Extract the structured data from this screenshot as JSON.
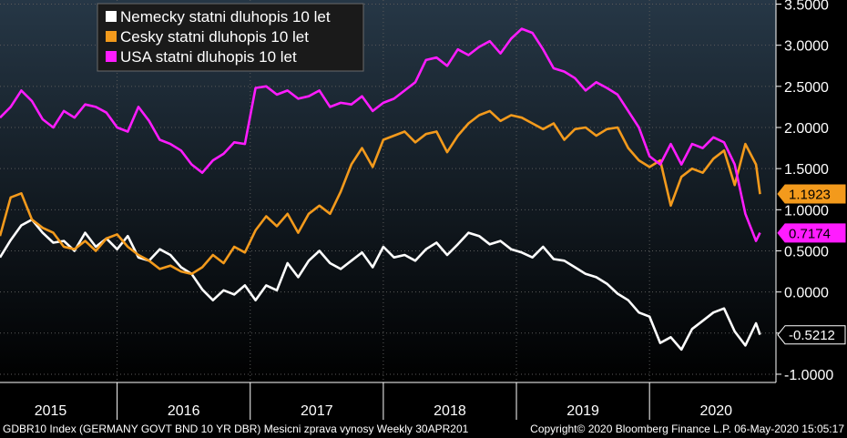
{
  "chart_data": {
    "type": "line",
    "y_ticks": [
      "3.5000",
      "3.0000",
      "2.5000",
      "2.0000",
      "1.5000",
      "1.0000",
      "0.5000",
      "0.0000",
      "-0.5000",
      "-1.0000"
    ],
    "y_tick_values": [
      3.5,
      3.0,
      2.5,
      2.0,
      1.5,
      1.0,
      0.5,
      0.0,
      -0.5,
      -1.0
    ],
    "ylim": [
      -1.1,
      3.55
    ],
    "x_range": [
      2014.62,
      2020.45
    ],
    "year_labels": [
      {
        "label": "2015",
        "value": 2015.0
      },
      {
        "label": "2016",
        "value": 2016.0
      },
      {
        "label": "2017",
        "value": 2017.0
      },
      {
        "label": "2018",
        "value": 2018.0
      },
      {
        "label": "2019",
        "value": 2019.0
      },
      {
        "label": "2020",
        "value": 2020.0
      }
    ],
    "year_boundaries": [
      2015.5,
      2016.5,
      2017.5,
      2018.5,
      2019.5
    ],
    "grid": true,
    "legend_position": "top-left",
    "series": [
      {
        "name": "Nemecky statni dluhopis 10 let",
        "color": "#ffffff",
        "last_value": "-0.5212",
        "x": [
          2014.62,
          2014.7,
          2014.78,
          2014.86,
          2014.94,
          2015.02,
          2015.1,
          2015.18,
          2015.26,
          2015.34,
          2015.42,
          2015.5,
          2015.58,
          2015.66,
          2015.74,
          2015.82,
          2015.9,
          2015.98,
          2016.06,
          2016.14,
          2016.22,
          2016.3,
          2016.38,
          2016.46,
          2016.54,
          2016.62,
          2016.7,
          2016.78,
          2016.86,
          2016.94,
          2017.02,
          2017.1,
          2017.18,
          2017.26,
          2017.34,
          2017.42,
          2017.5,
          2017.58,
          2017.66,
          2017.74,
          2017.82,
          2017.9,
          2017.98,
          2018.06,
          2018.14,
          2018.22,
          2018.3,
          2018.38,
          2018.46,
          2018.54,
          2018.62,
          2018.7,
          2018.78,
          2018.86,
          2018.94,
          2019.02,
          2019.1,
          2019.18,
          2019.26,
          2019.34,
          2019.42,
          2019.5,
          2019.58,
          2019.66,
          2019.74,
          2019.82,
          2019.9,
          2019.98,
          2020.06,
          2020.14,
          2020.22,
          2020.3,
          2020.33
        ],
        "y": [
          0.42,
          0.63,
          0.81,
          0.88,
          0.72,
          0.6,
          0.62,
          0.5,
          0.72,
          0.55,
          0.65,
          0.52,
          0.68,
          0.42,
          0.38,
          0.52,
          0.45,
          0.3,
          0.22,
          0.03,
          -0.1,
          0.02,
          -0.03,
          0.08,
          -0.1,
          0.08,
          0.02,
          0.35,
          0.18,
          0.38,
          0.5,
          0.35,
          0.28,
          0.38,
          0.48,
          0.3,
          0.55,
          0.42,
          0.45,
          0.38,
          0.52,
          0.6,
          0.45,
          0.58,
          0.72,
          0.68,
          0.58,
          0.62,
          0.52,
          0.48,
          0.42,
          0.55,
          0.4,
          0.38,
          0.3,
          0.22,
          0.18,
          0.1,
          -0.02,
          -0.1,
          -0.25,
          -0.3,
          -0.62,
          -0.55,
          -0.7,
          -0.45,
          -0.35,
          -0.25,
          -0.2,
          -0.48,
          -0.65,
          -0.38,
          -0.52
        ]
      },
      {
        "name": "Cesky statni dluhopis 10 let",
        "color": "#f39a1c",
        "last_value": "1.1923",
        "x": [
          2014.62,
          2014.7,
          2014.78,
          2014.86,
          2014.94,
          2015.02,
          2015.1,
          2015.18,
          2015.26,
          2015.34,
          2015.42,
          2015.5,
          2015.58,
          2015.66,
          2015.74,
          2015.82,
          2015.9,
          2015.98,
          2016.06,
          2016.14,
          2016.22,
          2016.3,
          2016.38,
          2016.46,
          2016.54,
          2016.62,
          2016.7,
          2016.78,
          2016.86,
          2016.94,
          2017.02,
          2017.1,
          2017.18,
          2017.26,
          2017.34,
          2017.42,
          2017.5,
          2017.58,
          2017.66,
          2017.74,
          2017.82,
          2017.9,
          2017.98,
          2018.06,
          2018.14,
          2018.22,
          2018.3,
          2018.38,
          2018.46,
          2018.54,
          2018.62,
          2018.7,
          2018.78,
          2018.86,
          2018.94,
          2019.02,
          2019.1,
          2019.18,
          2019.26,
          2019.34,
          2019.42,
          2019.5,
          2019.58,
          2019.66,
          2019.74,
          2019.82,
          2019.9,
          2019.98,
          2020.06,
          2020.14,
          2020.22,
          2020.3,
          2020.33
        ],
        "y": [
          0.68,
          1.15,
          1.2,
          0.88,
          0.78,
          0.72,
          0.55,
          0.52,
          0.62,
          0.5,
          0.65,
          0.7,
          0.55,
          0.45,
          0.38,
          0.28,
          0.32,
          0.25,
          0.22,
          0.3,
          0.45,
          0.35,
          0.55,
          0.48,
          0.75,
          0.92,
          0.8,
          0.95,
          0.72,
          0.95,
          1.05,
          0.95,
          1.22,
          1.55,
          1.75,
          1.52,
          1.85,
          1.9,
          1.95,
          1.82,
          1.92,
          1.95,
          1.7,
          1.9,
          2.05,
          2.15,
          2.2,
          2.08,
          2.15,
          2.12,
          2.05,
          1.98,
          2.05,
          1.85,
          1.98,
          2.0,
          1.9,
          1.98,
          2.0,
          1.75,
          1.6,
          1.52,
          1.6,
          1.05,
          1.4,
          1.5,
          1.45,
          1.62,
          1.72,
          1.3,
          1.8,
          1.55,
          1.19
        ]
      },
      {
        "name": "USA statni dluhopis 10 let",
        "color": "#ff1cff",
        "last_value": "0.7174",
        "x": [
          2014.62,
          2014.7,
          2014.78,
          2014.86,
          2014.94,
          2015.02,
          2015.1,
          2015.18,
          2015.26,
          2015.34,
          2015.42,
          2015.5,
          2015.58,
          2015.66,
          2015.74,
          2015.82,
          2015.9,
          2015.98,
          2016.06,
          2016.14,
          2016.22,
          2016.3,
          2016.38,
          2016.46,
          2016.54,
          2016.62,
          2016.7,
          2016.78,
          2016.86,
          2016.94,
          2017.02,
          2017.1,
          2017.18,
          2017.26,
          2017.34,
          2017.42,
          2017.5,
          2017.58,
          2017.66,
          2017.74,
          2017.82,
          2017.9,
          2017.98,
          2018.06,
          2018.14,
          2018.22,
          2018.3,
          2018.38,
          2018.46,
          2018.54,
          2018.62,
          2018.7,
          2018.78,
          2018.86,
          2018.94,
          2019.02,
          2019.1,
          2019.18,
          2019.26,
          2019.34,
          2019.42,
          2019.5,
          2019.58,
          2019.66,
          2019.74,
          2019.82,
          2019.9,
          2019.98,
          2020.06,
          2020.14,
          2020.22,
          2020.3,
          2020.33
        ],
        "y": [
          2.12,
          2.25,
          2.45,
          2.32,
          2.1,
          2.0,
          2.2,
          2.12,
          2.28,
          2.25,
          2.18,
          2.0,
          1.95,
          2.25,
          2.08,
          1.85,
          1.8,
          1.72,
          1.55,
          1.45,
          1.6,
          1.68,
          1.82,
          1.8,
          2.48,
          2.5,
          2.4,
          2.45,
          2.35,
          2.38,
          2.45,
          2.25,
          2.3,
          2.28,
          2.38,
          2.2,
          2.3,
          2.35,
          2.45,
          2.55,
          2.82,
          2.85,
          2.75,
          2.95,
          2.88,
          2.98,
          3.05,
          2.9,
          3.08,
          3.2,
          3.15,
          2.95,
          2.72,
          2.68,
          2.6,
          2.45,
          2.55,
          2.48,
          2.4,
          2.2,
          2.0,
          1.65,
          1.55,
          1.8,
          1.55,
          1.8,
          1.75,
          1.88,
          1.82,
          1.55,
          0.95,
          0.62,
          0.72
        ]
      }
    ]
  },
  "footer": {
    "left": "GDBR10 Index (GERMANY GOVT BND 10 YR DBR) Mesicni zprava vynosy  Weekly 30APR201",
    "right": "Copyright© 2020 Bloomberg Finance L.P. 06-May-2020 15:05:17"
  }
}
